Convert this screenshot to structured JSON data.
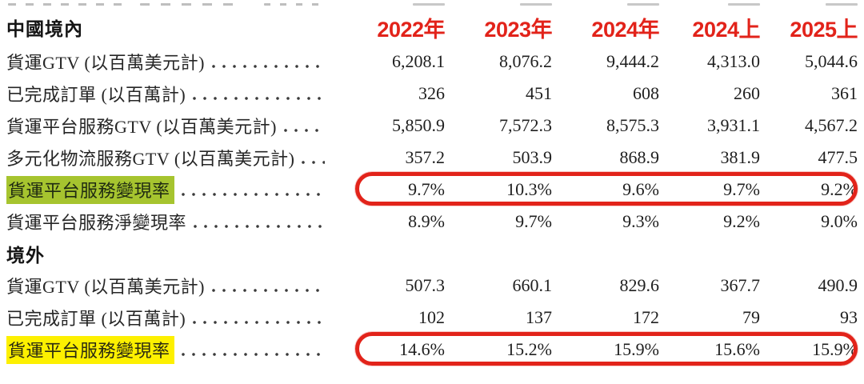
{
  "page": {
    "background": "#ffffff",
    "accent_red": "#e2231a",
    "highlight_green": "#a6c42f",
    "highlight_yellow": "#fdf000",
    "annotations": [
      {
        "type": "red-oval",
        "target": "mainland 貨運平台服務變現率 values"
      },
      {
        "type": "red-oval",
        "target": "overseas 貨運平台服務變現率 values"
      },
      {
        "type": "green-highlight",
        "target": "mainland 貨運平台服務變現率 label"
      },
      {
        "type": "yellow-highlight",
        "target": "overseas 貨運平台服務變現率 label"
      }
    ]
  },
  "table": {
    "columns": [
      "2022年",
      "2023年",
      "2024年",
      "2024上",
      "2025上"
    ],
    "sections": [
      {
        "title": "中國境內",
        "rows": [
          {
            "label": "貨運GTV (以百萬美元計)",
            "values": [
              "6,208.1",
              "8,076.2",
              "9,444.2",
              "4,313.0",
              "5,044.6"
            ]
          },
          {
            "label": "已完成訂單 (以百萬計)",
            "values": [
              "326",
              "451",
              "608",
              "260",
              "361"
            ]
          },
          {
            "label": "貨運平台服務GTV (以百萬美元計)",
            "values": [
              "5,850.9",
              "7,572.3",
              "8,575.3",
              "3,931.1",
              "4,567.2"
            ]
          },
          {
            "label": "多元化物流服務GTV (以百萬美元計)",
            "values": [
              "357.2",
              "503.9",
              "868.9",
              "381.9",
              "477.5"
            ]
          },
          {
            "label": "貨運平台服務變現率",
            "highlight": "green",
            "circled": true,
            "values": [
              "9.7%",
              "10.3%",
              "9.6%",
              "9.7%",
              "9.2%"
            ]
          },
          {
            "label": "貨運平台服務淨變現率",
            "values": [
              "8.9%",
              "9.7%",
              "9.3%",
              "9.2%",
              "9.0%"
            ]
          }
        ]
      },
      {
        "title": "境外",
        "rows": [
          {
            "label": "貨運GTV (以百萬美元計)",
            "values": [
              "507.3",
              "660.1",
              "829.6",
              "367.7",
              "490.9"
            ]
          },
          {
            "label": "已完成訂單 (以百萬計)",
            "values": [
              "102",
              "137",
              "172",
              "79",
              "93"
            ]
          },
          {
            "label": "貨運平台服務變現率",
            "highlight": "yellow",
            "circled": true,
            "values": [
              "14.6%",
              "15.2%",
              "15.9%",
              "15.6%",
              "15.9%"
            ]
          }
        ]
      }
    ]
  }
}
